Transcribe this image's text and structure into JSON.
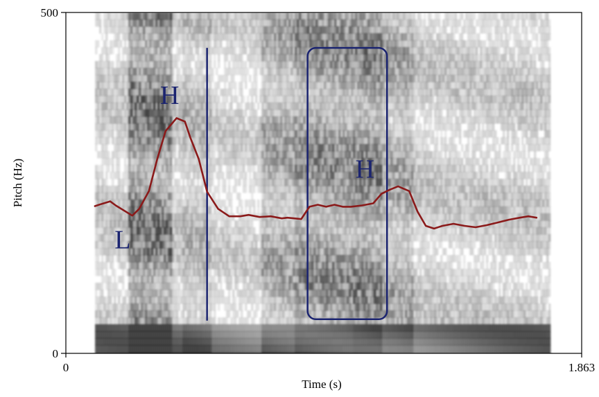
{
  "chart_data": {
    "type": "line",
    "title": "",
    "xlabel": "Time (s)",
    "ylabel": "Pitch (Hz)",
    "xlim": [
      0,
      1.863
    ],
    "ylim": [
      0,
      500
    ],
    "x_tick_labels": [
      "0",
      "1.863"
    ],
    "y_tick_labels": [
      "0",
      "500"
    ],
    "grid": false,
    "background": "grayscale spectrogram",
    "series": [
      {
        "color": "#8b1a1a",
        "x": [
          0.105,
          0.12,
          0.16,
          0.18,
          0.24,
          0.265,
          0.3,
          0.33,
          0.36,
          0.4,
          0.43,
          0.45,
          0.48,
          0.51,
          0.55,
          0.59,
          0.63,
          0.66,
          0.7,
          0.74,
          0.78,
          0.8,
          0.85,
          0.88,
          0.91,
          0.94,
          0.97,
          1.0,
          1.03,
          1.07,
          1.11,
          1.14,
          1.17,
          1.2,
          1.24,
          1.27,
          1.3,
          1.33,
          1.36,
          1.4,
          1.44,
          1.48,
          1.52,
          1.56,
          1.6,
          1.64,
          1.67,
          1.7
        ],
        "y": [
          216,
          218,
          223,
          217,
          202,
          212,
          238,
          285,
          326,
          345,
          340,
          316,
          285,
          237,
          212,
          201,
          201,
          203,
          200,
          201,
          198,
          199,
          197,
          215,
          218,
          215,
          218,
          215,
          215,
          217,
          220,
          234,
          240,
          245,
          238,
          208,
          187,
          183,
          187,
          190,
          187,
          185,
          188,
          192,
          196,
          199,
          201,
          199
        ]
      }
    ],
    "annotations": {
      "tone_labels": [
        {
          "text": "H",
          "x": 0.375,
          "y": 379
        },
        {
          "text": "L",
          "x": 0.205,
          "y": 167
        },
        {
          "text": "H",
          "x": 1.08,
          "y": 271
        }
      ],
      "boundary_line": {
        "x": 0.51,
        "y_from": 48,
        "y_to": 448,
        "color": "#1b2470"
      },
      "highlight_box": {
        "x_from": 0.873,
        "x_to": 1.16,
        "y_from": 50,
        "y_to": 448,
        "color": "#1b2470"
      }
    }
  }
}
